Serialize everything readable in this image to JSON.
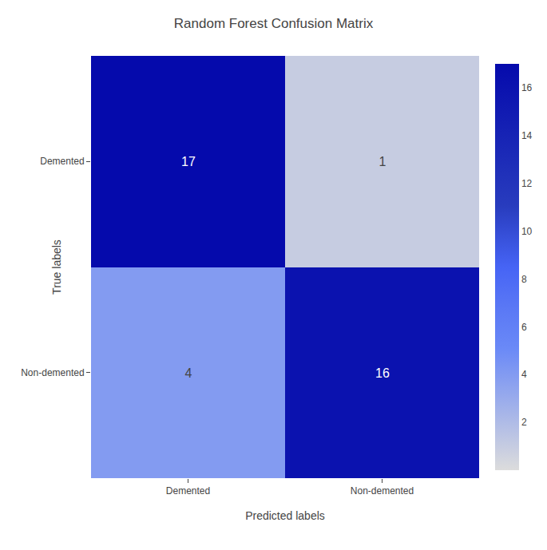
{
  "chart_data": {
    "type": "heatmap",
    "title": "Random Forest Confusion Matrix",
    "xlabel": "Predicted labels",
    "ylabel": "True labels",
    "categories": [
      "Demented",
      "Non-demented"
    ],
    "values": [
      [
        17,
        1
      ],
      [
        4,
        16
      ]
    ],
    "color": "Blues",
    "zlim": [
      0,
      17
    ],
    "zticks": [
      2,
      4,
      6,
      8,
      10,
      12,
      14,
      16
    ],
    "data_labels": true,
    "grid": false
  }
}
